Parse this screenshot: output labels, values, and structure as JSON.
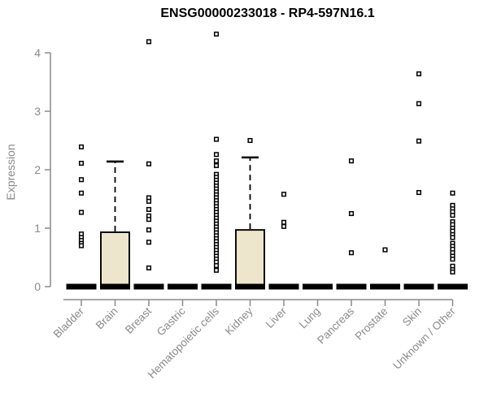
{
  "chart_data": {
    "type": "boxplot",
    "title": "ENSG00000233018 - RP4-597N16.1",
    "ylabel": "Expression",
    "xlabel": "",
    "yticks": [
      0,
      1,
      2,
      3,
      4
    ],
    "ylim": [
      0,
      4.35
    ],
    "grid": false,
    "legend": "none",
    "categories": [
      "Bladder",
      "Brain",
      "Breast",
      "Gastric",
      "Hematopoietic cells",
      "Kidney",
      "Liver",
      "Lung",
      "Pancreas",
      "Prostate",
      "Skin",
      "Unknown / Other"
    ],
    "series": [
      {
        "name": "Bladder",
        "q1": 0,
        "median": 0,
        "q3": 0,
        "whisker_low": 0,
        "whisker_high": 0,
        "outliers": [
          2.39,
          2.11,
          1.83,
          1.6,
          1.27,
          0.9,
          0.84,
          0.79,
          0.74,
          0.7
        ]
      },
      {
        "name": "Brain",
        "q1": 0,
        "median": 0,
        "q3": 0.93,
        "whisker_low": 0,
        "whisker_high": 2.14,
        "outliers": []
      },
      {
        "name": "Breast",
        "q1": 0,
        "median": 0,
        "q3": 0,
        "whisker_low": 0,
        "whisker_high": 0,
        "outliers": [
          4.19,
          2.1,
          1.52,
          1.46,
          1.32,
          1.21,
          1.15,
          0.97,
          0.76,
          0.32
        ]
      },
      {
        "name": "Gastric",
        "q1": 0,
        "median": 0,
        "q3": 0,
        "whisker_low": 0,
        "whisker_high": 0,
        "outliers": []
      },
      {
        "name": "Hematopoietic cells",
        "q1": 0,
        "median": 0,
        "q3": 0,
        "whisker_low": 0,
        "whisker_high": 0,
        "outliers": [
          4.32,
          2.52,
          2.26,
          2.15,
          2.07,
          1.92,
          1.87,
          1.82,
          1.77,
          1.72,
          1.67,
          1.62,
          1.57,
          1.52,
          1.47,
          1.42,
          1.37,
          1.32,
          1.27,
          1.22,
          1.17,
          1.12,
          1.07,
          1.02,
          0.97,
          0.92,
          0.87,
          0.82,
          0.77,
          0.72,
          0.67,
          0.62,
          0.57,
          0.52,
          0.47,
          0.42,
          0.36,
          0.28
        ]
      },
      {
        "name": "Kidney",
        "q1": 0,
        "median": 0,
        "q3": 0.97,
        "whisker_low": 0,
        "whisker_high": 2.21,
        "outliers": [
          2.5
        ]
      },
      {
        "name": "Liver",
        "q1": 0,
        "median": 0,
        "q3": 0,
        "whisker_low": 0,
        "whisker_high": 0,
        "outliers": [
          1.58,
          1.1,
          1.03
        ]
      },
      {
        "name": "Lung",
        "q1": 0,
        "median": 0,
        "q3": 0,
        "whisker_low": 0,
        "whisker_high": 0,
        "outliers": []
      },
      {
        "name": "Pancreas",
        "q1": 0,
        "median": 0,
        "q3": 0,
        "whisker_low": 0,
        "whisker_high": 0,
        "outliers": [
          2.15,
          1.25,
          0.58
        ]
      },
      {
        "name": "Prostate",
        "q1": 0,
        "median": 0,
        "q3": 0,
        "whisker_low": 0,
        "whisker_high": 0,
        "outliers": [
          0.63
        ]
      },
      {
        "name": "Skin",
        "q1": 0,
        "median": 0,
        "q3": 0,
        "whisker_low": 0,
        "whisker_high": 0,
        "outliers": [
          3.64,
          3.13,
          2.49,
          1.61
        ]
      },
      {
        "name": "Unknown / Other",
        "q1": 0,
        "median": 0,
        "q3": 0,
        "whisker_low": 0,
        "whisker_high": 0,
        "outliers": [
          1.6,
          1.39,
          1.33,
          1.28,
          1.22,
          1.11,
          1.06,
          1.0,
          0.95,
          0.89,
          0.84,
          0.74,
          0.69,
          0.64,
          0.58,
          0.52,
          0.47,
          0.35,
          0.29,
          0.25
        ]
      }
    ],
    "colors": {
      "box_fill": "#EDE6CD",
      "box_stroke": "#000000",
      "median": "#000000",
      "outlier_fill": "#ffffff",
      "outlier_stroke": "#000000",
      "axis": "#8a8a8a",
      "tick_text": "#8a8a8a",
      "title_text": "#000000",
      "background": "#ffffff"
    }
  }
}
